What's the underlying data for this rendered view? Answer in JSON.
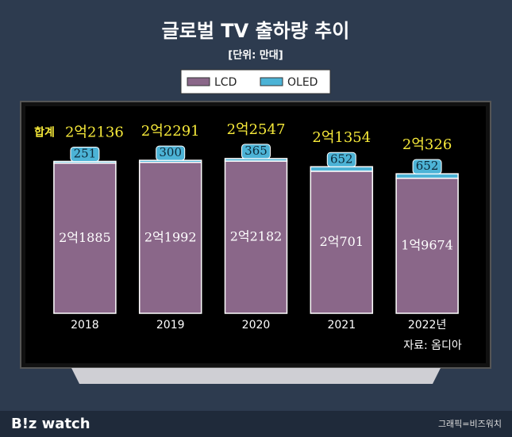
{
  "chart_data": {
    "type": "stacked_bar",
    "title": "글로벌 TV 출하량 추이",
    "subtitle": "[단위: 만대]",
    "categories": [
      "2018",
      "2019",
      "2020",
      "2021",
      "2022년"
    ],
    "series": [
      {
        "name": "LCD",
        "color": "#8a6789",
        "values": [
          21885,
          21992,
          22182,
          20701,
          19674
        ],
        "value_labels": [
          "2억1885",
          "2억1992",
          "2억2182",
          "2억701",
          "1억9674"
        ]
      },
      {
        "name": "OLED",
        "color": "#4cb3d6",
        "values": [
          251,
          300,
          365,
          652,
          652
        ]
      }
    ],
    "totals": [
      22136,
      22291,
      22547,
      21354,
      20326
    ],
    "total_labels": [
      "2억2136",
      "2억2291",
      "2억2547",
      "2억1354",
      "2억326"
    ],
    "total_prefix": "합계",
    "ylim": [
      0,
      23000
    ],
    "source": "자료: 옴디아"
  },
  "footer": {
    "brand": "B!z watch",
    "credit": "그래픽=비즈워치"
  }
}
